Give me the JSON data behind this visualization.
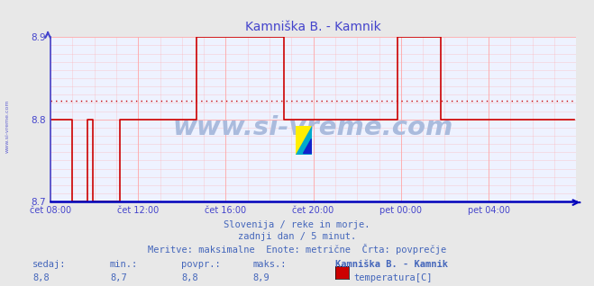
{
  "title": "Kamniška B. - Kamnik",
  "title_color": "#4444cc",
  "bg_color": "#e8e8e8",
  "plot_bg_color": "#eef2ff",
  "grid_color": "#ffaaaa",
  "axis_color": "#4444cc",
  "line_color": "#cc0000",
  "avg_line_color": "#cc0000",
  "avg_line_value": 8.823,
  "ylim": [
    8.7,
    8.9
  ],
  "yticks": [
    8.7,
    8.8,
    8.9
  ],
  "n_points": 288,
  "xtick_positions": [
    0,
    48,
    96,
    144,
    192,
    240
  ],
  "xtick_labels": [
    "čet 08:00",
    "čet 12:00",
    "čet 16:00",
    "čet 20:00",
    "pet 00:00",
    "pet 04:00"
  ],
  "watermark": "www.si-vreme.com",
  "watermark_color": "#aabbdd",
  "footer_line1": "Slovenija / reke in morje.",
  "footer_line2": "zadnji dan / 5 minut.",
  "footer_line3": "Meritve: maksimalne  Enote: metrične  Črta: povprečje",
  "footer_color": "#4466bb",
  "stats_labels": [
    "sedaj:",
    "min.:",
    "povpr.:",
    "maks.:"
  ],
  "stats_values": [
    "8,8",
    "8,7",
    "8,8",
    "8,9"
  ],
  "legend_title": "Kamniška B. - Kamnik",
  "legend_label": "temperatura[C]",
  "legend_color": "#cc0000",
  "left_label": "www.si-vreme.com",
  "left_label_color": "#4444cc",
  "data_points": [
    8.8,
    8.8,
    8.8,
    8.8,
    8.8,
    8.8,
    8.8,
    8.8,
    8.8,
    8.8,
    8.8,
    8.8,
    8.7,
    8.7,
    8.7,
    8.7,
    8.7,
    8.7,
    8.7,
    8.7,
    8.8,
    8.8,
    8.8,
    8.7,
    8.7,
    8.7,
    8.7,
    8.7,
    8.7,
    8.7,
    8.7,
    8.7,
    8.7,
    8.7,
    8.7,
    8.7,
    8.7,
    8.7,
    8.8,
    8.8,
    8.8,
    8.8,
    8.8,
    8.8,
    8.8,
    8.8,
    8.8,
    8.8,
    8.8,
    8.8,
    8.8,
    8.8,
    8.8,
    8.8,
    8.8,
    8.8,
    8.8,
    8.8,
    8.8,
    8.8,
    8.8,
    8.8,
    8.8,
    8.8,
    8.8,
    8.8,
    8.8,
    8.8,
    8.8,
    8.8,
    8.8,
    8.8,
    8.8,
    8.8,
    8.8,
    8.8,
    8.8,
    8.8,
    8.8,
    8.8,
    8.9,
    8.9,
    8.9,
    8.9,
    8.9,
    8.9,
    8.9,
    8.9,
    8.9,
    8.9,
    8.9,
    8.9,
    8.9,
    8.9,
    8.9,
    8.9,
    8.9,
    8.9,
    8.9,
    8.9,
    8.9,
    8.9,
    8.9,
    8.9,
    8.9,
    8.9,
    8.9,
    8.9,
    8.9,
    8.9,
    8.9,
    8.9,
    8.9,
    8.9,
    8.9,
    8.9,
    8.9,
    8.9,
    8.9,
    8.9,
    8.9,
    8.9,
    8.9,
    8.9,
    8.9,
    8.9,
    8.9,
    8.9,
    8.8,
    8.8,
    8.8,
    8.8,
    8.8,
    8.8,
    8.8,
    8.8,
    8.8,
    8.8,
    8.8,
    8.8,
    8.8,
    8.8,
    8.8,
    8.8,
    8.8,
    8.8,
    8.8,
    8.8,
    8.8,
    8.8,
    8.8,
    8.8,
    8.8,
    8.8,
    8.8,
    8.8,
    8.8,
    8.8,
    8.8,
    8.8,
    8.8,
    8.8,
    8.8,
    8.8,
    8.8,
    8.8,
    8.8,
    8.8,
    8.8,
    8.8,
    8.8,
    8.8,
    8.8,
    8.8,
    8.8,
    8.8,
    8.8,
    8.8,
    8.8,
    8.8,
    8.8,
    8.8,
    8.8,
    8.8,
    8.8,
    8.8,
    8.8,
    8.8,
    8.8,
    8.8,
    8.9,
    8.9,
    8.9,
    8.9,
    8.9,
    8.9,
    8.9,
    8.9,
    8.9,
    8.9,
    8.9,
    8.9,
    8.9,
    8.9,
    8.9,
    8.9,
    8.9,
    8.9,
    8.9,
    8.9,
    8.9,
    8.9,
    8.9,
    8.9,
    8.8,
    8.8,
    8.8,
    8.8,
    8.8,
    8.8,
    8.8,
    8.8,
    8.8,
    8.8,
    8.8,
    8.8,
    8.8,
    8.8,
    8.8,
    8.8,
    8.8,
    8.8,
    8.8,
    8.8,
    8.8,
    8.8,
    8.8,
    8.8,
    8.8,
    8.8,
    8.8,
    8.8,
    8.8,
    8.8,
    8.8,
    8.8,
    8.8,
    8.8,
    8.8,
    8.8,
    8.8,
    8.8,
    8.8,
    8.8,
    8.8,
    8.8,
    8.8,
    8.8,
    8.8,
    8.8,
    8.8,
    8.8,
    8.8,
    8.8,
    8.8,
    8.8,
    8.8,
    8.8,
    8.8,
    8.8,
    8.8,
    8.8,
    8.8,
    8.8,
    8.8,
    8.8,
    8.8,
    8.8,
    8.8,
    8.8,
    8.8,
    8.8,
    8.8,
    8.8,
    8.8,
    8.8,
    8.8,
    8.8
  ]
}
